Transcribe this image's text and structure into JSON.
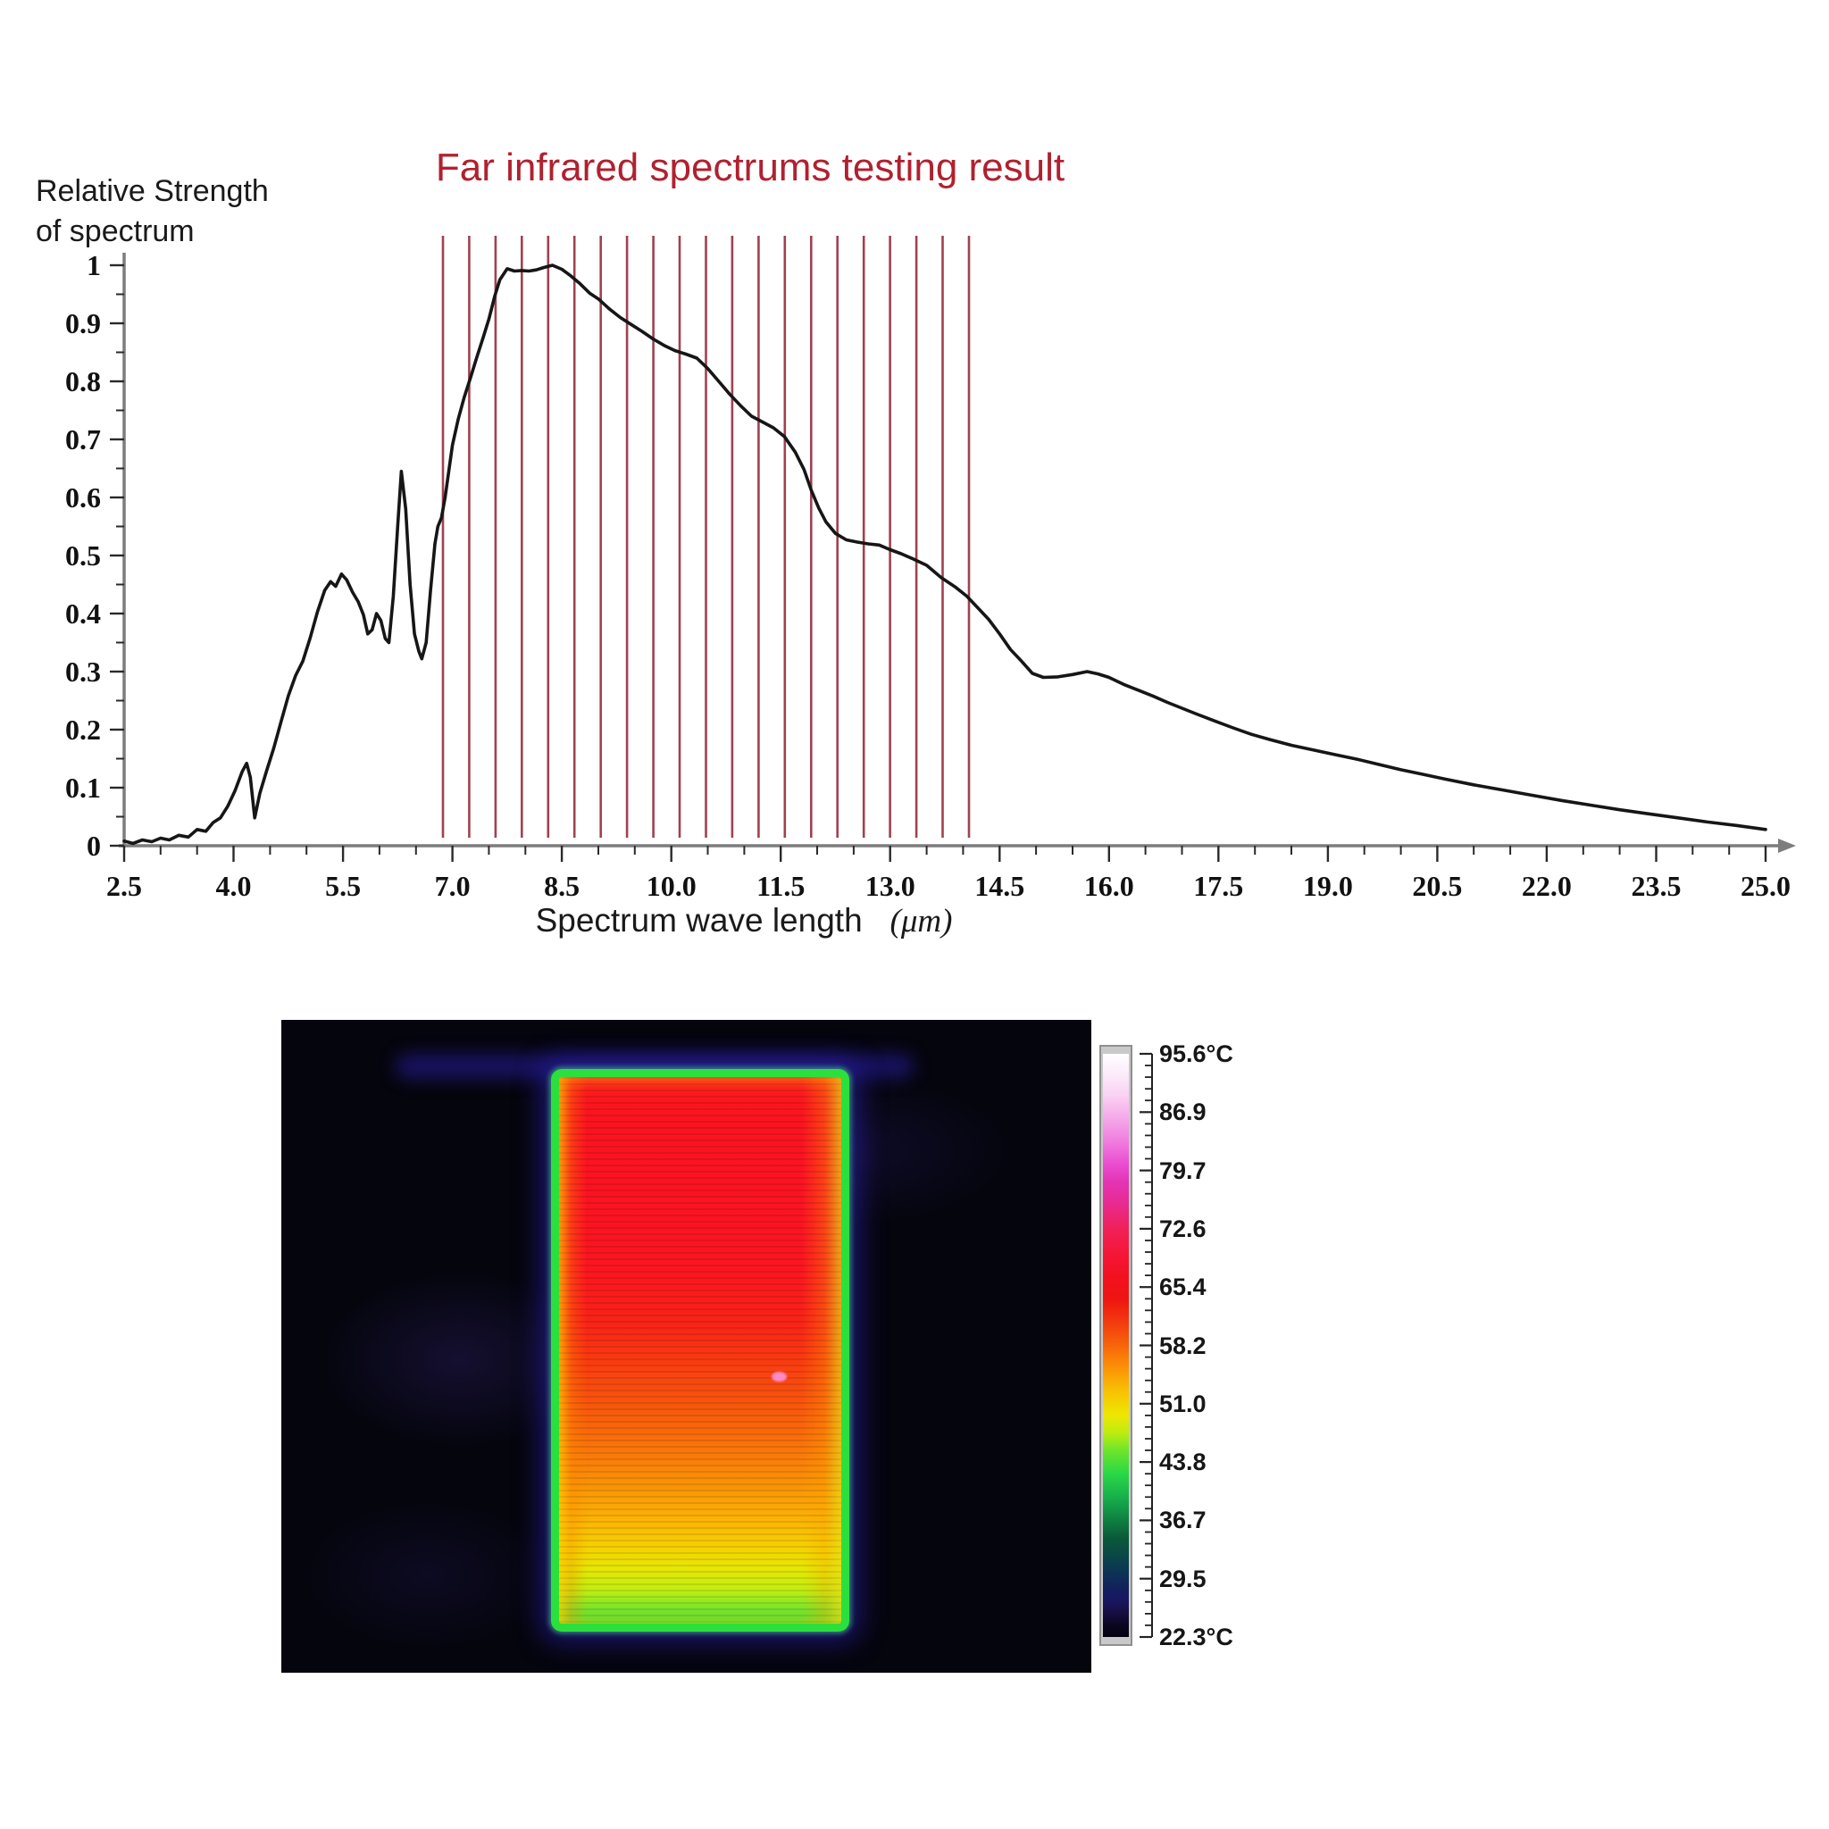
{
  "chart": {
    "title": "Far infrared spectrums testing result",
    "title_color": "#b0212f",
    "y_axis_label_line1": "Relative Strength",
    "y_axis_label_line2": "of spectrum",
    "x_axis_label": "Spectrum wave length",
    "x_axis_unit": "(μm)",
    "x_tick_labels": [
      "2.5",
      "4.0",
      "5.5",
      "7.0",
      "8.5",
      "10.0",
      "11.5",
      "13.0",
      "14.5",
      "16.0",
      "17.5",
      "19.0",
      "20.5",
      "22.0",
      "23.5",
      "25.0"
    ],
    "y_tick_labels": [
      "0",
      "0.1",
      "0.2",
      "0.3",
      "0.4",
      "0.5",
      "0.6",
      "0.7",
      "0.8",
      "0.9",
      "1"
    ],
    "curve_color": "#161616",
    "axis_color": "#7d7d7d",
    "tick_color": "#2a2a2a",
    "red_line_color": "#a04150"
  },
  "chart_data": {
    "type": "line",
    "title": "Far infrared spectrums testing result",
    "xlabel": "Spectrum wave length (μm)",
    "ylabel": "Relative Strength of spectrum",
    "xlim": [
      2.5,
      25.0
    ],
    "ylim": [
      0,
      1
    ],
    "x_ticks": [
      2.5,
      4.0,
      5.5,
      7.0,
      8.5,
      10.0,
      11.5,
      13.0,
      14.5,
      16.0,
      17.5,
      19.0,
      20.5,
      22.0,
      23.5,
      25.0
    ],
    "x_minor_step": 0.5,
    "y_ticks": [
      0,
      0.1,
      0.2,
      0.3,
      0.4,
      0.5,
      0.6,
      0.7,
      0.8,
      0.9,
      1.0
    ],
    "y_minor_step": 0.05,
    "grid": false,
    "legend": false,
    "highlight_lines": {
      "count": 21,
      "x_start": 6.87,
      "x_end": 14.08,
      "note": "vertical red marker lines"
    },
    "series": [
      {
        "name": "far-infrared spectrum",
        "points": [
          [
            2.5,
            0.008
          ],
          [
            2.62,
            0.004
          ],
          [
            2.75,
            0.01
          ],
          [
            2.88,
            0.007
          ],
          [
            3.0,
            0.013
          ],
          [
            3.12,
            0.01
          ],
          [
            3.25,
            0.018
          ],
          [
            3.38,
            0.015
          ],
          [
            3.5,
            0.028
          ],
          [
            3.62,
            0.025
          ],
          [
            3.72,
            0.04
          ],
          [
            3.82,
            0.048
          ],
          [
            3.92,
            0.068
          ],
          [
            4.02,
            0.095
          ],
          [
            4.12,
            0.128
          ],
          [
            4.18,
            0.142
          ],
          [
            4.23,
            0.118
          ],
          [
            4.29,
            0.048
          ],
          [
            4.36,
            0.09
          ],
          [
            4.45,
            0.128
          ],
          [
            4.55,
            0.168
          ],
          [
            4.65,
            0.213
          ],
          [
            4.75,
            0.258
          ],
          [
            4.85,
            0.293
          ],
          [
            4.95,
            0.318
          ],
          [
            5.05,
            0.358
          ],
          [
            5.15,
            0.403
          ],
          [
            5.25,
            0.44
          ],
          [
            5.33,
            0.455
          ],
          [
            5.4,
            0.447
          ],
          [
            5.48,
            0.468
          ],
          [
            5.55,
            0.458
          ],
          [
            5.63,
            0.437
          ],
          [
            5.71,
            0.42
          ],
          [
            5.78,
            0.398
          ],
          [
            5.84,
            0.365
          ],
          [
            5.9,
            0.372
          ],
          [
            5.96,
            0.4
          ],
          [
            6.02,
            0.388
          ],
          [
            6.08,
            0.357
          ],
          [
            6.13,
            0.35
          ],
          [
            6.19,
            0.43
          ],
          [
            6.25,
            0.55
          ],
          [
            6.3,
            0.645
          ],
          [
            6.36,
            0.58
          ],
          [
            6.42,
            0.45
          ],
          [
            6.48,
            0.365
          ],
          [
            6.54,
            0.335
          ],
          [
            6.58,
            0.322
          ],
          [
            6.64,
            0.35
          ],
          [
            6.7,
            0.44
          ],
          [
            6.76,
            0.52
          ],
          [
            6.8,
            0.55
          ],
          [
            6.85,
            0.565
          ],
          [
            6.9,
            0.6
          ],
          [
            6.95,
            0.645
          ],
          [
            7.0,
            0.69
          ],
          [
            7.08,
            0.735
          ],
          [
            7.16,
            0.772
          ],
          [
            7.25,
            0.807
          ],
          [
            7.33,
            0.84
          ],
          [
            7.42,
            0.875
          ],
          [
            7.5,
            0.907
          ],
          [
            7.58,
            0.947
          ],
          [
            7.65,
            0.975
          ],
          [
            7.75,
            0.994
          ],
          [
            7.85,
            0.99
          ],
          [
            7.95,
            0.991
          ],
          [
            8.05,
            0.99
          ],
          [
            8.15,
            0.992
          ],
          [
            8.25,
            0.996
          ],
          [
            8.37,
            1.0
          ],
          [
            8.5,
            0.993
          ],
          [
            8.62,
            0.982
          ],
          [
            8.75,
            0.968
          ],
          [
            8.88,
            0.952
          ],
          [
            9.0,
            0.942
          ],
          [
            9.15,
            0.925
          ],
          [
            9.3,
            0.91
          ],
          [
            9.45,
            0.898
          ],
          [
            9.6,
            0.886
          ],
          [
            9.75,
            0.873
          ],
          [
            9.9,
            0.862
          ],
          [
            10.05,
            0.853
          ],
          [
            10.2,
            0.847
          ],
          [
            10.35,
            0.84
          ],
          [
            10.5,
            0.822
          ],
          [
            10.65,
            0.8
          ],
          [
            10.8,
            0.778
          ],
          [
            10.95,
            0.758
          ],
          [
            11.1,
            0.74
          ],
          [
            11.25,
            0.73
          ],
          [
            11.4,
            0.72
          ],
          [
            11.55,
            0.705
          ],
          [
            11.7,
            0.678
          ],
          [
            11.82,
            0.648
          ],
          [
            11.92,
            0.612
          ],
          [
            12.02,
            0.582
          ],
          [
            12.12,
            0.558
          ],
          [
            12.25,
            0.538
          ],
          [
            12.4,
            0.527
          ],
          [
            12.55,
            0.523
          ],
          [
            12.7,
            0.52
          ],
          [
            12.85,
            0.518
          ],
          [
            13.0,
            0.51
          ],
          [
            13.15,
            0.503
          ],
          [
            13.3,
            0.495
          ],
          [
            13.5,
            0.483
          ],
          [
            13.7,
            0.462
          ],
          [
            13.9,
            0.445
          ],
          [
            14.05,
            0.43
          ],
          [
            14.2,
            0.41
          ],
          [
            14.35,
            0.39
          ],
          [
            14.5,
            0.365
          ],
          [
            14.65,
            0.338
          ],
          [
            14.8,
            0.318
          ],
          [
            14.95,
            0.297
          ],
          [
            15.1,
            0.29
          ],
          [
            15.3,
            0.291
          ],
          [
            15.5,
            0.295
          ],
          [
            15.7,
            0.3
          ],
          [
            15.85,
            0.296
          ],
          [
            16.0,
            0.29
          ],
          [
            16.2,
            0.278
          ],
          [
            16.4,
            0.268
          ],
          [
            16.6,
            0.258
          ],
          [
            16.8,
            0.247
          ],
          [
            17.0,
            0.237
          ],
          [
            17.2,
            0.227
          ],
          [
            17.45,
            0.215
          ],
          [
            17.7,
            0.203
          ],
          [
            17.95,
            0.192
          ],
          [
            18.2,
            0.183
          ],
          [
            18.5,
            0.173
          ],
          [
            18.8,
            0.165
          ],
          [
            19.1,
            0.157
          ],
          [
            19.4,
            0.149
          ],
          [
            19.7,
            0.14
          ],
          [
            20.0,
            0.131
          ],
          [
            20.3,
            0.123
          ],
          [
            20.6,
            0.115
          ],
          [
            21.0,
            0.105
          ],
          [
            21.4,
            0.096
          ],
          [
            21.8,
            0.087
          ],
          [
            22.2,
            0.078
          ],
          [
            22.6,
            0.07
          ],
          [
            23.0,
            0.062
          ],
          [
            23.4,
            0.055
          ],
          [
            23.8,
            0.048
          ],
          [
            24.2,
            0.041
          ],
          [
            24.6,
            0.035
          ],
          [
            25.0,
            0.028
          ]
        ]
      }
    ]
  },
  "thermal": {
    "background_color": "#05050e",
    "panel": {
      "border_color": "#2be03c",
      "hot_spot_color": "#ff8fd0",
      "vertical_stops": [
        [
          "0%",
          "#fb1a1e"
        ],
        [
          "8%",
          "#fa141f"
        ],
        [
          "20%",
          "#fb1322"
        ],
        [
          "35%",
          "#fa1620"
        ],
        [
          "45%",
          "#f92318"
        ],
        [
          "52%",
          "#f93b10"
        ],
        [
          "60%",
          "#f8560d"
        ],
        [
          "68%",
          "#f9750a"
        ],
        [
          "75%",
          "#fa9407"
        ],
        [
          "81%",
          "#fbb305"
        ],
        [
          "86%",
          "#f6d103"
        ],
        [
          "90%",
          "#e6e704"
        ],
        [
          "94%",
          "#c0ee12"
        ],
        [
          "97%",
          "#7ce92c"
        ],
        [
          "100%",
          "#3ce23c"
        ]
      ]
    },
    "colorbar": {
      "labels": [
        "95.6°C",
        "86.9",
        "79.7",
        "72.6",
        "65.4",
        "58.2",
        "51.0",
        "43.8",
        "36.7",
        "29.5",
        "22.3°C"
      ],
      "minor_ticks_per_interval": 4,
      "gradient_stops": [
        [
          "0%",
          "#ffffff"
        ],
        [
          "3%",
          "#fceefb"
        ],
        [
          "7%",
          "#f9d3f4"
        ],
        [
          "11%",
          "#f5a9ea"
        ],
        [
          "15%",
          "#f07ddf"
        ],
        [
          "19%",
          "#ea4cd0"
        ],
        [
          "22%",
          "#e433b4"
        ],
        [
          "26%",
          "#e92a8c"
        ],
        [
          "30%",
          "#f02158"
        ],
        [
          "34%",
          "#f5173a"
        ],
        [
          "38%",
          "#f31020"
        ],
        [
          "42%",
          "#ee1511"
        ],
        [
          "46%",
          "#f23a0e"
        ],
        [
          "50%",
          "#f7650a"
        ],
        [
          "54%",
          "#fb9406"
        ],
        [
          "58%",
          "#f8c303"
        ],
        [
          "62%",
          "#ede702"
        ],
        [
          "65%",
          "#bdec0f"
        ],
        [
          "68%",
          "#6ee52b"
        ],
        [
          "72%",
          "#2ad846"
        ],
        [
          "76%",
          "#17b04c"
        ],
        [
          "80%",
          "#0f7f41"
        ],
        [
          "83%",
          "#0a5a39"
        ],
        [
          "86%",
          "#0a4747"
        ],
        [
          "89%",
          "#0c3355"
        ],
        [
          "92%",
          "#131f5e"
        ],
        [
          "94%",
          "#1a155e"
        ],
        [
          "96%",
          "#150e3e"
        ],
        [
          "98%",
          "#0a0620"
        ],
        [
          "100%",
          "#030210"
        ]
      ]
    }
  }
}
